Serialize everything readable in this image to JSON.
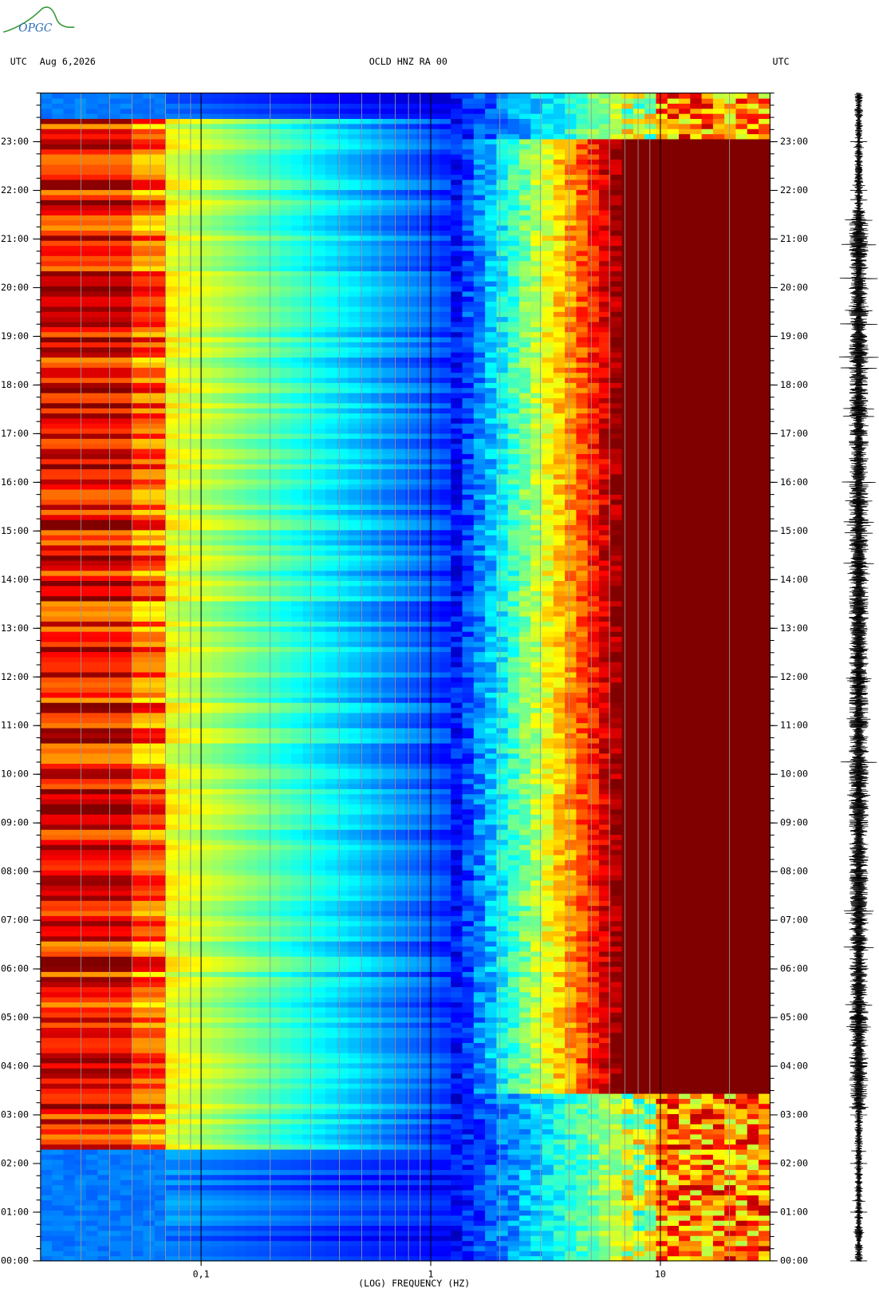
{
  "header": {
    "logo": "OPGC",
    "left_zone": "UTC",
    "date": "Aug 6,2026",
    "station": "OCLD HNZ RA 00",
    "right_zone": "UTC"
  },
  "chart_data": {
    "type": "spectrogram",
    "x_label": "(LOG) FREQUENCY (HZ)",
    "xscale": "log",
    "xlim": [
      0.02,
      30
    ],
    "xticks": [
      {
        "value": 0.1,
        "label": "0,1"
      },
      1,
      10
    ],
    "minor_xticks": [
      0.03,
      0.04,
      0.05,
      0.06,
      0.07,
      0.08,
      0.09,
      0.2,
      0.3,
      0.4,
      0.5,
      0.6,
      0.7,
      0.8,
      0.9,
      2,
      3,
      4,
      5,
      6,
      7,
      8,
      9,
      20
    ],
    "ylim": [
      0,
      24
    ],
    "yticks": [
      {
        "value": 0,
        "label": "00:00"
      },
      {
        "value": 1,
        "label": "01:00"
      },
      {
        "value": 2,
        "label": "02:00"
      },
      {
        "value": 3,
        "label": "03:00"
      },
      {
        "value": 4,
        "label": "04:00"
      },
      {
        "value": 5,
        "label": "05:00"
      },
      {
        "value": 6,
        "label": "06:00"
      },
      {
        "value": 7,
        "label": "07:00"
      },
      {
        "value": 8,
        "label": "08:00"
      },
      {
        "value": 9,
        "label": "09:00"
      },
      {
        "value": 10,
        "label": "10:00"
      },
      {
        "value": 11,
        "label": "11:00"
      },
      {
        "value": 12,
        "label": "12:00"
      },
      {
        "value": 13,
        "label": "13:00"
      },
      {
        "value": 14,
        "label": "14:00"
      },
      {
        "value": 15,
        "label": "15:00"
      },
      {
        "value": 16,
        "label": "16:00"
      },
      {
        "value": 17,
        "label": "17:00"
      },
      {
        "value": 18,
        "label": "18:00"
      },
      {
        "value": 19,
        "label": "19:00"
      },
      {
        "value": 20,
        "label": "20:00"
      },
      {
        "value": 21,
        "label": "21:00"
      },
      {
        "value": 22,
        "label": "22:00"
      },
      {
        "value": 23,
        "label": "23:00"
      }
    ]
  }
}
